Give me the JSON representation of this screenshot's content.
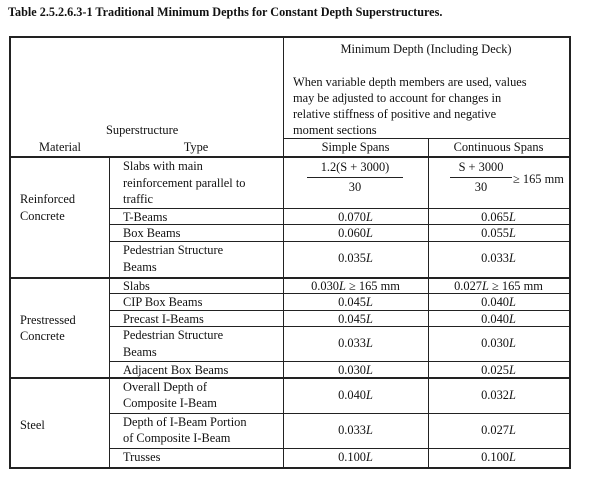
{
  "title": "Table 2.5.2.6.3-1 Traditional Minimum Depths for Constant Depth Superstructures.",
  "header": {
    "min_depth": "Minimum Depth (Including Deck)",
    "note_lines": [
      "When variable depth members are used, values",
      "may be adjusted to account for changes in",
      "relative stiffness of positive and negative",
      "moment sections"
    ],
    "superstructure": "Superstructure",
    "material": "Material",
    "type": "Type",
    "simple": "Simple Spans",
    "continuous": "Continuous Spans"
  },
  "groups": [
    {
      "material_lines": [
        "Reinforced",
        "Concrete"
      ],
      "rows": [
        {
          "type_lines": [
            "Slabs with main",
            "reinforcement parallel to",
            "traffic"
          ],
          "simple": {
            "num": "1.2(S + 3000)",
            "den": "30"
          },
          "continuous": {
            "num": "S + 3000",
            "den": "30",
            "suffix": "≥ 165 mm"
          }
        },
        {
          "type_lines": [
            "T-Beams"
          ],
          "simple": "0.070",
          "continuous": "0.065"
        },
        {
          "type_lines": [
            "Box Beams"
          ],
          "simple": "0.060",
          "continuous": "0.055"
        },
        {
          "type_lines": [
            "Pedestrian Structure",
            "Beams"
          ],
          "simple": "0.035",
          "continuous": "0.033"
        }
      ]
    },
    {
      "material_lines": [
        "Prestressed",
        "Concrete"
      ],
      "rows": [
        {
          "type_lines": [
            "Slabs"
          ],
          "simple": "0.030",
          "simple_suffix": " ≥ 165 mm",
          "continuous": "0.027",
          "continuous_suffix": " ≥ 165 mm"
        },
        {
          "type_lines": [
            "CIP Box Beams"
          ],
          "simple": "0.045",
          "continuous": "0.040"
        },
        {
          "type_lines": [
            "Precast I-Beams"
          ],
          "simple": "0.045",
          "continuous": "0.040"
        },
        {
          "type_lines": [
            "Pedestrian Structure",
            "Beams"
          ],
          "simple": "0.033",
          "continuous": "0.030"
        },
        {
          "type_lines": [
            "Adjacent Box Beams"
          ],
          "simple": "0.030",
          "continuous": "0.025"
        }
      ]
    },
    {
      "material_lines": [
        "Steel"
      ],
      "rows": [
        {
          "type_lines": [
            "Overall Depth of",
            "Composite I-Beam"
          ],
          "simple": "0.040",
          "continuous": "0.032"
        },
        {
          "type_lines": [
            "Depth of I-Beam Portion",
            "of Composite I-Beam"
          ],
          "simple": "0.033",
          "continuous": "0.027"
        },
        {
          "type_lines": [
            "Trusses"
          ],
          "simple": "0.100",
          "continuous": "0.100"
        }
      ]
    }
  ],
  "L": "L"
}
